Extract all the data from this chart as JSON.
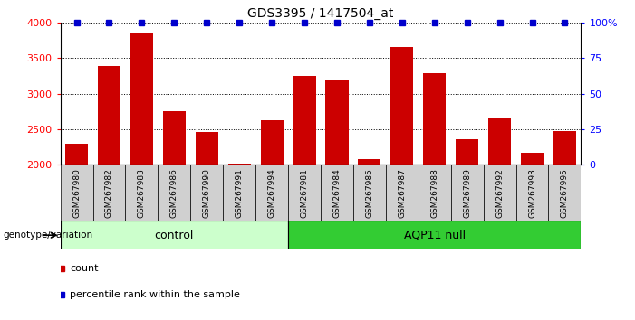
{
  "title": "GDS3395 / 1417504_at",
  "categories": [
    "GSM267980",
    "GSM267982",
    "GSM267983",
    "GSM267986",
    "GSM267990",
    "GSM267991",
    "GSM267994",
    "GSM267981",
    "GSM267984",
    "GSM267985",
    "GSM267987",
    "GSM267988",
    "GSM267989",
    "GSM267992",
    "GSM267993",
    "GSM267995"
  ],
  "counts": [
    2300,
    3390,
    3840,
    2750,
    2460,
    2020,
    2630,
    3250,
    3185,
    2080,
    3660,
    3290,
    2360,
    2670,
    2165,
    2480
  ],
  "control_count": 7,
  "aqp11_count": 9,
  "bar_color": "#cc0000",
  "percentile_color": "#0000cc",
  "ylim_left": [
    2000,
    4000
  ],
  "ylim_right": [
    0,
    100
  ],
  "yticks_left": [
    2000,
    2500,
    3000,
    3500,
    4000
  ],
  "yticks_right": [
    0,
    25,
    50,
    75,
    100
  ],
  "control_label": "control",
  "aqp11_label": "AQP11 null",
  "control_color": "#ccffcc",
  "aqp11_color": "#33cc33",
  "xlabel_bottom": "genotype/variation",
  "legend_count_label": "count",
  "legend_percentile_label": "percentile rank within the sample",
  "plot_bg": "#ffffff",
  "tick_bg": "#d0d0d0",
  "bar_width": 0.7,
  "title_fontsize": 10
}
